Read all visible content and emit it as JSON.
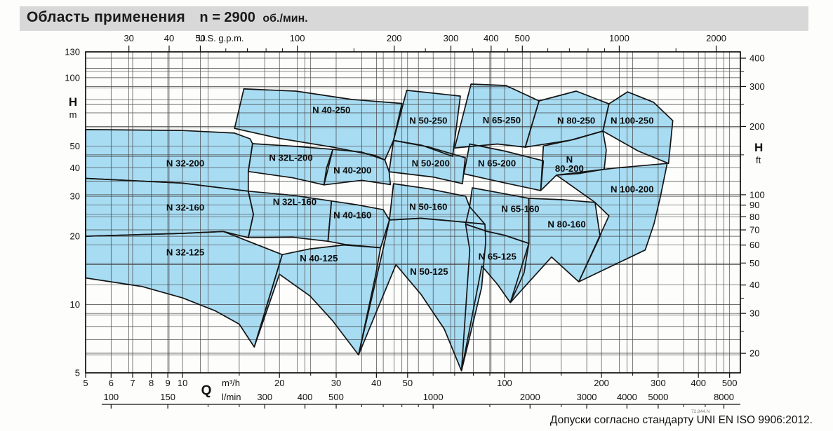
{
  "title": {
    "main": "Область применения",
    "speed": "n = 2900",
    "unit": "об./мин."
  },
  "footer": {
    "tolerance": "Допуски согласно стандарту UNI EN ISO 9906:2012.",
    "doc_code": "72.844.N"
  },
  "colors": {
    "region_fill": "#a8dcf2",
    "region_stroke": "#151515",
    "grid": "#454545",
    "border": "#000000",
    "title_bg": "#d8d8d8",
    "text": "#111111"
  },
  "axes": {
    "top": {
      "unit": "U.S. g.p.m.",
      "major": [
        30,
        40,
        50,
        100,
        200,
        300,
        400,
        500,
        1000,
        2000
      ],
      "minor": [
        60,
        70,
        80,
        90,
        150,
        250,
        350,
        450,
        600,
        700,
        800,
        900,
        1500
      ],
      "gpm_per_m3h": 4.4029
    },
    "left": {
      "label": "H",
      "unit": "m",
      "ticks": [
        130,
        100,
        50,
        40,
        30,
        20,
        10,
        5
      ]
    },
    "right": {
      "label": "H",
      "unit": "ft",
      "major": [
        400,
        300,
        200,
        100,
        90,
        80,
        70,
        60,
        50,
        40,
        30,
        20
      ],
      "minor": [
        350,
        250,
        150,
        35,
        25
      ],
      "ft_per_m": 3.2808
    },
    "bottom_m3h": {
      "label": "Q",
      "unit": "m³/h",
      "major": [
        5,
        6,
        7,
        8,
        9,
        10,
        20,
        30,
        40,
        50,
        100,
        200,
        300,
        400,
        500
      ],
      "minor": [
        15,
        25,
        60,
        70,
        80,
        90,
        150,
        250
      ]
    },
    "bottom_lmin": {
      "unit": "l/min",
      "major": [
        100,
        150,
        300,
        400,
        500,
        1000,
        2000,
        3000,
        4000,
        5000,
        8000
      ],
      "minor": [
        200,
        250,
        600,
        700,
        800,
        900,
        1500,
        2500,
        6000,
        7000
      ],
      "lmin_per_m3h": 16.667
    }
  },
  "grid": {
    "x_m3h": [
      6,
      7,
      8,
      9,
      10,
      15,
      20,
      25,
      30,
      40,
      50,
      60,
      70,
      80,
      90,
      100,
      150,
      200,
      250,
      300,
      400,
      500
    ],
    "x_lmin_as_m3h": [
      12,
      18,
      24,
      36,
      42,
      48,
      54,
      90,
      120,
      180,
      240,
      360,
      420,
      480
    ],
    "x_gpm_as_m3h": [
      6.81,
      9.08,
      11.36,
      22.71,
      45.42,
      68.14,
      90.85,
      113.56,
      227.12,
      454.25
    ],
    "y_m": [
      6,
      7,
      8,
      9,
      10,
      15,
      20,
      25,
      30,
      35,
      40,
      45,
      50,
      60,
      70,
      80,
      90,
      100,
      110
    ],
    "y_ft_as_m": [
      6.1,
      9.14,
      12.19,
      15.24,
      18.29,
      21.34,
      24.38,
      27.43,
      30.48,
      45.72,
      60.96,
      76.2,
      91.44,
      106.68,
      121.92
    ]
  },
  "chart_data": {
    "type": "area",
    "title": "Область применения n = 2900 об./мин.",
    "x_axis": "Q — flow (m³/h shown 5–500, also l/min 100–8000 and U.S. g.p.m. 30–2000), log scale",
    "y_axis": "H — head (m shown 5–130, also ft 20–400), log scale",
    "x_range_m3h": [
      5,
      540
    ],
    "y_range_m": [
      5,
      130
    ],
    "grid": "on",
    "regions": [
      {
        "name": "N 32-125",
        "label": "N 32-125",
        "label_at": [
          10.2,
          17
        ],
        "points": [
          [
            5,
            20
          ],
          [
            10,
            20.6
          ],
          [
            13.4,
            21
          ],
          [
            20.4,
            16.6
          ],
          [
            16.7,
            6.5
          ],
          [
            15,
            8.2
          ],
          [
            12.6,
            9.4
          ],
          [
            10,
            10.7
          ],
          [
            7.5,
            12
          ],
          [
            5,
            13.1
          ]
        ]
      },
      {
        "name": "N 40-125",
        "label": "N 40-125",
        "label_at": [
          26.5,
          16
        ],
        "points": [
          [
            16.7,
            6.5
          ],
          [
            20.4,
            16.6
          ],
          [
            24.9,
            17.6
          ],
          [
            31.7,
            18.3
          ],
          [
            41.2,
            17.8
          ],
          [
            39.9,
            13.8
          ],
          [
            35.2,
            6.0
          ],
          [
            29.2,
            8.5
          ],
          [
            24.9,
            10.9
          ],
          [
            20,
            13.6
          ]
        ]
      },
      {
        "name": "N 50-125",
        "label": "N 50-125",
        "label_at": [
          58.3,
          14
        ],
        "points": [
          [
            35.2,
            6.0
          ],
          [
            41.9,
            17.4
          ],
          [
            43.9,
            23.6
          ],
          [
            55,
            24
          ],
          [
            70,
            23.3
          ],
          [
            86.9,
            22.6
          ],
          [
            87.4,
            18.9
          ],
          [
            84.9,
            11.9
          ],
          [
            73.5,
            5.1
          ],
          [
            65,
            7.8
          ],
          [
            55,
            11.1
          ],
          [
            46,
            15
          ]
        ]
      },
      {
        "name": "N 65-125",
        "label": "N 65-125",
        "label_at": [
          95,
          16.3
        ],
        "points": [
          [
            73.5,
            5.1
          ],
          [
            78,
            17.4
          ],
          [
            75.7,
            22.6
          ],
          [
            88.5,
            21
          ],
          [
            100,
            20.2
          ],
          [
            119,
            18.6
          ],
          [
            115,
            13.8
          ],
          [
            104.2,
            10.2
          ],
          [
            95,
            12.3
          ],
          [
            85,
            14.8
          ]
        ]
      },
      {
        "name": "N 32-160",
        "label": "N 32-160",
        "label_at": [
          10.2,
          26.8
        ],
        "points": [
          [
            5,
            36
          ],
          [
            10,
            34.3
          ],
          [
            16,
            31.6
          ],
          [
            16.6,
            25
          ],
          [
            16,
            19.7
          ],
          [
            13.4,
            21
          ],
          [
            10,
            20.6
          ],
          [
            5,
            20
          ]
        ]
      },
      {
        "name": "N 32L-160",
        "label": "N 32L-160",
        "label_at": [
          22.3,
          28.4
        ],
        "points": [
          [
            16,
            31.6
          ],
          [
            22,
            30.3
          ],
          [
            29,
            28.6
          ],
          [
            28.3,
            19
          ],
          [
            22,
            19.8
          ],
          [
            16,
            19.7
          ],
          [
            16.6,
            25
          ]
        ]
      },
      {
        "name": "N 40-160",
        "label": "N 40-160",
        "label_at": [
          33.7,
          24.8
        ],
        "points": [
          [
            29,
            28.6
          ],
          [
            35,
            27.5
          ],
          [
            42,
            26.2
          ],
          [
            43.9,
            23.6
          ],
          [
            41.2,
            17.8
          ],
          [
            32,
            18.4
          ],
          [
            28.3,
            19
          ]
        ]
      },
      {
        "name": "N 50-160",
        "label": "N 50-160",
        "label_at": [
          58,
          27
        ],
        "points": [
          [
            45.2,
            34.1
          ],
          [
            58,
            32.4
          ],
          [
            75.7,
            30
          ],
          [
            77.9,
            27
          ],
          [
            86.9,
            22.6
          ],
          [
            70,
            23.3
          ],
          [
            55,
            24
          ],
          [
            43.9,
            23.6
          ]
        ]
      },
      {
        "name": "N 65-160",
        "label": "N 65-160",
        "label_at": [
          112,
          26.4
        ],
        "points": [
          [
            77.9,
            27
          ],
          [
            79.4,
            32.7
          ],
          [
            95,
            31.2
          ],
          [
            119,
            29.4
          ],
          [
            119,
            18.6
          ],
          [
            100,
            20.2
          ],
          [
            88.5,
            21
          ],
          [
            75.7,
            22.6
          ]
        ]
      },
      {
        "name": "N 80-160",
        "label": "N 80-160",
        "label_at": [
          156,
          22.6
        ],
        "points": [
          [
            104.2,
            10.2
          ],
          [
            119,
            18.6
          ],
          [
            119,
            29.4
          ],
          [
            150,
            29
          ],
          [
            191,
            28.2
          ],
          [
            198,
            20
          ],
          [
            170,
            12.6
          ],
          [
            140,
            16.2
          ]
        ]
      },
      {
        "name": "N 32-200",
        "label": "N 32-200",
        "label_at": [
          10.2,
          41.9
        ],
        "points": [
          [
            5,
            59.1
          ],
          [
            10,
            58.5
          ],
          [
            14.5,
            57
          ],
          [
            16.2,
            53.8
          ],
          [
            16.5,
            51.2
          ],
          [
            16,
            38.6
          ],
          [
            16,
            31.6
          ],
          [
            10,
            34.3
          ],
          [
            5,
            36
          ]
        ]
      },
      {
        "name": "N 32L-200",
        "label": "N 32L-200",
        "label_at": [
          21.7,
          44.4
        ],
        "points": [
          [
            16.5,
            51.2
          ],
          [
            22.5,
            49.8
          ],
          [
            29.3,
            48.3
          ],
          [
            28,
            40
          ],
          [
            27.5,
            33.7
          ],
          [
            22,
            36.2
          ],
          [
            16,
            38.6
          ]
        ]
      },
      {
        "name": "N 40-200",
        "label": "N 40-200",
        "label_at": [
          33.7,
          39
        ],
        "points": [
          [
            29.3,
            48.3
          ],
          [
            36,
            47
          ],
          [
            42.5,
            43.4
          ],
          [
            43.8,
            38.5
          ],
          [
            44.2,
            33.8
          ],
          [
            36,
            35.3
          ],
          [
            27.5,
            33.7
          ]
        ]
      },
      {
        "name": "N 50-200",
        "label": "N 50-200",
        "label_at": [
          59,
          42
        ],
        "points": [
          [
            45.2,
            52.9
          ],
          [
            58,
            49.5
          ],
          [
            75.5,
            44.4
          ],
          [
            74,
            34.1
          ],
          [
            60,
            36.5
          ],
          [
            43.8,
            38.5
          ]
        ]
      },
      {
        "name": "N 65-200",
        "label": "N 65-200",
        "label_at": [
          94.7,
          41.9
        ],
        "points": [
          [
            77.9,
            51
          ],
          [
            100,
            47.5
          ],
          [
            132,
            43
          ],
          [
            129.5,
            31.8
          ],
          [
            98,
            34.6
          ],
          [
            74.8,
            37.7
          ]
        ]
      },
      {
        "name": "N 80-200",
        "label": "N 80-200",
        "label_lines": [
          "N",
          "80-200"
        ],
        "label_at": [
          159,
          41
        ],
        "points": [
          [
            132,
            50
          ],
          [
            165,
            53.5
          ],
          [
            202,
            58.2
          ],
          [
            207,
            48
          ],
          [
            204,
            39.5
          ],
          [
            170,
            37.8
          ],
          [
            145,
            37.2
          ],
          [
            129.5,
            31.8
          ]
        ]
      },
      {
        "name": "N 100-200",
        "label": "N 100-200",
        "label_at": [
          249,
          32.2
        ],
        "points": [
          [
            170,
            12.6
          ],
          [
            211,
            24.6
          ],
          [
            191,
            28.2
          ],
          [
            145,
            37.2
          ],
          [
            218,
            39.9
          ],
          [
            320,
            41.9
          ],
          [
            305,
            30
          ],
          [
            291,
            22.6
          ],
          [
            273.5,
            17.4
          ]
        ]
      },
      {
        "name": "N 40-250",
        "label": "N 40-250",
        "label_at": [
          29,
          72
        ],
        "points": [
          [
            15.5,
            89.2
          ],
          [
            22.5,
            87.3
          ],
          [
            33.5,
            80.2
          ],
          [
            48,
            77
          ],
          [
            45.2,
            52.9
          ],
          [
            42.5,
            43.4
          ],
          [
            39.5,
            45.5
          ],
          [
            29,
            49.5
          ],
          [
            20,
            54
          ],
          [
            14.5,
            59.8
          ]
        ]
      },
      {
        "name": "N 50-250",
        "label": "N 50-250",
        "label_at": [
          58,
          64.7
        ],
        "points": [
          [
            49.7,
            88
          ],
          [
            60,
            85.5
          ],
          [
            72.9,
            83
          ],
          [
            69,
            45
          ],
          [
            55.3,
            50.4
          ],
          [
            45.2,
            52.9
          ]
        ]
      },
      {
        "name": "N 65-250",
        "label": "N 65-250",
        "label_at": [
          98,
          65
        ],
        "points": [
          [
            78.7,
            93.7
          ],
          [
            101,
            92.4
          ],
          [
            128,
            79
          ],
          [
            116,
            49.4
          ],
          [
            95,
            51
          ],
          [
            70,
            49
          ]
        ]
      },
      {
        "name": "N 80-250",
        "label": "N 80-250",
        "label_at": [
          167,
          64.7
        ],
        "points": [
          [
            128,
            79
          ],
          [
            167,
            87.3
          ],
          [
            211,
            76.7
          ],
          [
            202,
            58.2
          ],
          [
            160,
            53
          ],
          [
            116,
            49.4
          ]
        ]
      },
      {
        "name": "N 100-250",
        "label": "N 100-250",
        "label_at": [
          249,
          64.7
        ],
        "points": [
          [
            211,
            76.7
          ],
          [
            241,
            86.6
          ],
          [
            290,
            78
          ],
          [
            333,
            64.7
          ],
          [
            323,
            41.9
          ],
          [
            260,
            47.5
          ],
          [
            202,
            58.2
          ]
        ]
      }
    ]
  }
}
